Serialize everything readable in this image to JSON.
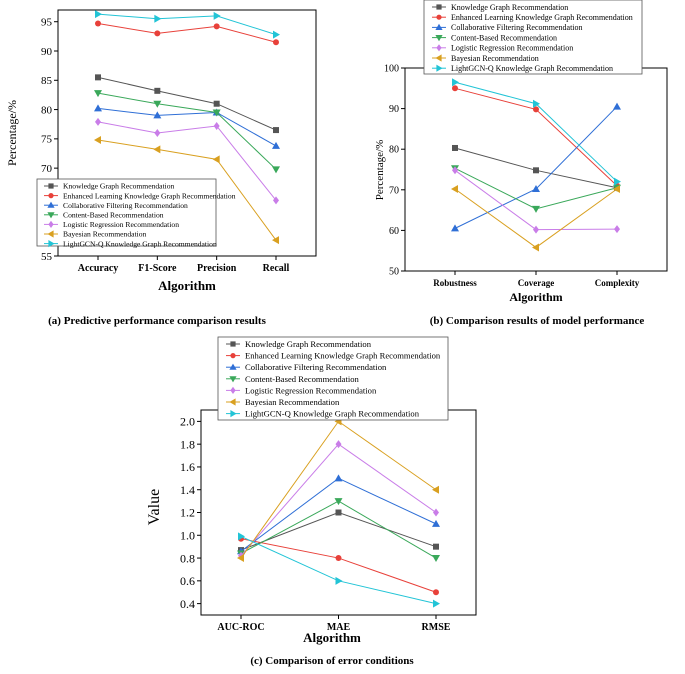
{
  "legend": [
    "Knowledge Graph Recommendation",
    "Enhanced Learning Knowledge Graph Recommendation",
    "Collaborative Filtering Recommendation",
    "Content-Based Recommendation",
    "Logistic Regression Recommendation",
    "Bayesian Recommendation",
    "LightGCN-Q Knowledge Graph Recommendation"
  ],
  "series_style": [
    {
      "color": "#555555",
      "marker": "square"
    },
    {
      "color": "#e8413a",
      "marker": "circle"
    },
    {
      "color": "#2f6fd6",
      "marker": "triangle-up"
    },
    {
      "color": "#3aa85a",
      "marker": "triangle-down"
    },
    {
      "color": "#c97de8",
      "marker": "diamond"
    },
    {
      "color": "#d9a020",
      "marker": "triangle-left"
    },
    {
      "color": "#22c4d6",
      "marker": "triangle-right"
    }
  ],
  "chart_data": [
    {
      "type": "line",
      "caption": "(a) Predictive performance comparison results",
      "xlabel": "Algorithm",
      "ylabel": "Percentage/%",
      "categories": [
        "Accuracy",
        "F1-Score",
        "Precision",
        "Recall"
      ],
      "ylim": [
        55,
        97
      ],
      "yticks": [
        55,
        60,
        65,
        70,
        75,
        80,
        85,
        90,
        95
      ],
      "legend_position": "bottom-left",
      "series": [
        {
          "name": "Knowledge Graph Recommendation",
          "values": [
            85.5,
            83.2,
            81.0,
            76.5
          ]
        },
        {
          "name": "Enhanced Learning Knowledge Graph Recommendation",
          "values": [
            94.7,
            93.0,
            94.2,
            91.5
          ]
        },
        {
          "name": "Collaborative Filtering Recommendation",
          "values": [
            80.2,
            79.0,
            79.5,
            73.8
          ]
        },
        {
          "name": "Content-Based Recommendation",
          "values": [
            82.8,
            81.0,
            79.5,
            69.8
          ]
        },
        {
          "name": "Logistic Regression Recommendation",
          "values": [
            77.9,
            76.0,
            77.2,
            64.5
          ]
        },
        {
          "name": "Bayesian Recommendation",
          "values": [
            74.8,
            73.2,
            71.5,
            57.7
          ]
        },
        {
          "name": "LightGCN-Q Knowledge Graph Recommendation",
          "values": [
            96.3,
            95.5,
            96.0,
            92.8
          ]
        }
      ]
    },
    {
      "type": "line",
      "caption": "(b) Comparison results of model performance",
      "xlabel": "Algorithm",
      "ylabel": "Percentage/%",
      "categories": [
        "Robustness",
        "Coverage",
        "Complexity"
      ],
      "ylim": [
        50,
        100
      ],
      "yticks": [
        50,
        60,
        70,
        80,
        90,
        100
      ],
      "legend_position": "top",
      "series": [
        {
          "name": "Knowledge Graph Recommendation",
          "values": [
            80.3,
            74.8,
            70.5
          ]
        },
        {
          "name": "Enhanced Learning Knowledge Graph Recommendation",
          "values": [
            95.0,
            89.8,
            71.0
          ]
        },
        {
          "name": "Collaborative Filtering Recommendation",
          "values": [
            60.5,
            70.2,
            90.5
          ]
        },
        {
          "name": "Content-Based Recommendation",
          "values": [
            75.3,
            65.3,
            70.5
          ]
        },
        {
          "name": "Logistic Regression Recommendation",
          "values": [
            74.8,
            60.2,
            60.3
          ]
        },
        {
          "name": "Bayesian Recommendation",
          "values": [
            70.2,
            55.8,
            70.2
          ]
        },
        {
          "name": "LightGCN-Q Knowledge Graph Recommendation",
          "values": [
            96.5,
            91.2,
            72.0
          ]
        }
      ]
    },
    {
      "type": "line",
      "caption": "(c) Comparison of error conditions",
      "xlabel": "Algorithm",
      "ylabel": "Value",
      "categories": [
        "AUC-ROC",
        "MAE",
        "RMSE"
      ],
      "ylim": [
        0.3,
        2.1
      ],
      "yticks": [
        0.4,
        0.6,
        0.8,
        1.0,
        1.2,
        1.4,
        1.6,
        1.8,
        2.0
      ],
      "ytick_labels": [
        "0.4",
        "0.6",
        "0.8",
        "1.0",
        "1.2",
        "1.4",
        "1.6",
        "1.8",
        "2.0"
      ],
      "legend_position": "top",
      "series": [
        {
          "name": "Knowledge Graph Recommendation",
          "values": [
            0.87,
            1.2,
            0.9
          ]
        },
        {
          "name": "Enhanced Learning Knowledge Graph Recommendation",
          "values": [
            0.97,
            0.8,
            0.5
          ]
        },
        {
          "name": "Collaborative Filtering Recommendation",
          "values": [
            0.86,
            1.5,
            1.1
          ]
        },
        {
          "name": "Content-Based Recommendation",
          "values": [
            0.84,
            1.3,
            0.8
          ]
        },
        {
          "name": "Logistic Regression Recommendation",
          "values": [
            0.82,
            1.8,
            1.2
          ]
        },
        {
          "name": "Bayesian Recommendation",
          "values": [
            0.8,
            2.0,
            1.4
          ]
        },
        {
          "name": "LightGCN-Q Knowledge Graph Recommendation",
          "values": [
            0.99,
            0.6,
            0.4
          ]
        }
      ]
    }
  ]
}
